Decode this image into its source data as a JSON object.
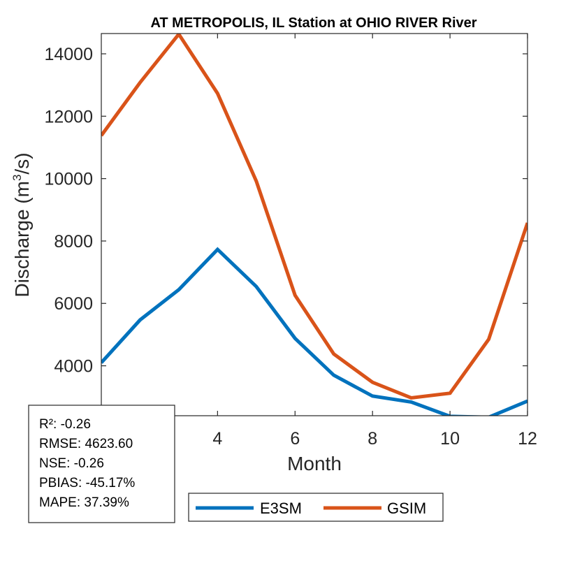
{
  "chart_data": {
    "type": "line",
    "title": "AT METROPOLIS, IL  Station at  OHIO RIVER  River",
    "xlabel": "Month",
    "ylabel_base": "Discharge (m",
    "ylabel_sup": "3",
    "ylabel_tail": "/s)",
    "xlim": [
      1,
      12
    ],
    "ylim": [
      2400,
      14650
    ],
    "xticks": [
      4,
      6,
      8,
      10,
      12
    ],
    "xtick_labels": [
      "4",
      "6",
      "8",
      "10",
      "12"
    ],
    "yticks": [
      4000,
      6000,
      8000,
      10000,
      12000,
      14000
    ],
    "ytick_labels": [
      "4000",
      "6000",
      "8000",
      "10000",
      "12000",
      "14000"
    ],
    "x": [
      1,
      2,
      3,
      4,
      5,
      6,
      7,
      8,
      9,
      10,
      11,
      12
    ],
    "series": [
      {
        "name": "E3SM",
        "color": "#0072BD",
        "values": [
          4100,
          5470,
          6440,
          7730,
          6540,
          4880,
          3700,
          3030,
          2840,
          2380,
          2350,
          2870
        ]
      },
      {
        "name": "GSIM",
        "color": "#D95319",
        "values": [
          11380,
          13080,
          14630,
          12730,
          9920,
          6260,
          4380,
          3470,
          2970,
          3120,
          4850,
          8580
        ]
      }
    ],
    "grid": false,
    "legend_position": "bottom-center"
  },
  "stats": {
    "lines": [
      "R²: -0.26",
      "RMSE: 4623.60",
      "NSE: -0.26",
      "PBIAS: -45.17%",
      "MAPE: 37.39%"
    ]
  }
}
